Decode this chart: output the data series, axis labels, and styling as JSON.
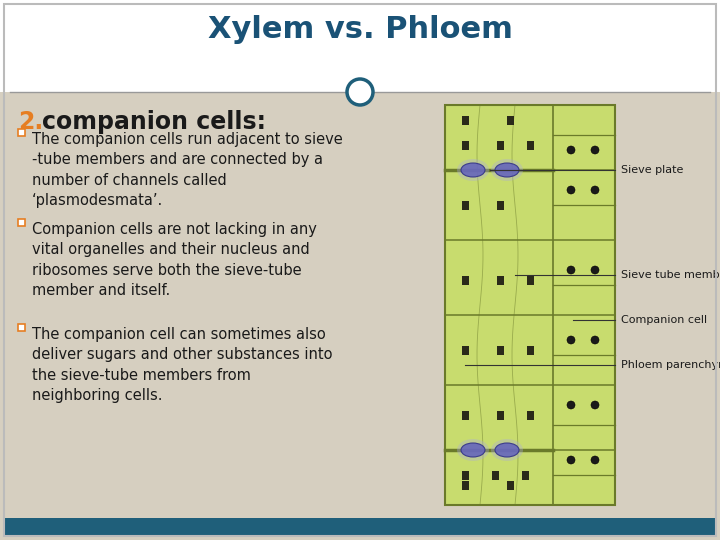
{
  "title": "Xylem vs. Phloem",
  "title_color": "#1a5276",
  "title_fontsize": 22,
  "bg_color": "#d6cfc0",
  "header_bg": "#ffffff",
  "footer_color": "#1f5f7a",
  "number_color": "#e67e22",
  "heading": "companion cells:",
  "heading_fontsize": 17,
  "bullet_color": "#e67e22",
  "bullet_points": [
    "The companion cells run adjacent to sieve\n-tube members and are connected by a\nnumber of channels called\n‘plasmodesmata’.",
    "Companion cells are not lacking in any\nvital organelles and their nucleus and\nribosomes serve both the sieve-tube\nmember and itself.",
    "The companion cell can sometimes also\ndeliver sugars and other substances into\nthe sieve-tube members from\nneighboring cells."
  ],
  "text_color": "#1a1a1a",
  "text_fontsize": 10.5,
  "divider_color": "#999999",
  "circle_color": "#1f5f7a",
  "image_labels": [
    "Sieve plate",
    "Sieve tube member",
    "Companion cell",
    "Phloem parenchyma"
  ],
  "cell_green": "#c8dc6e",
  "cell_line": "#6a7a2a",
  "nucleus_color": "#6666bb",
  "nucleus_edge": "#333388"
}
